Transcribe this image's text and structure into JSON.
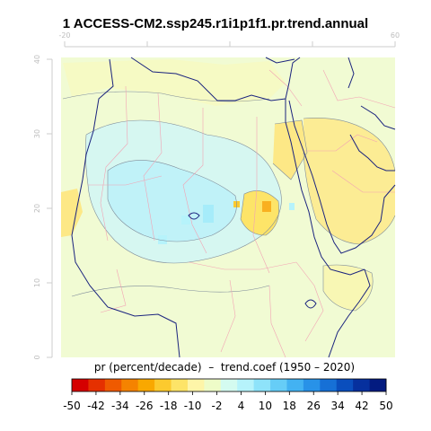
{
  "title": "1 ACCESS-CM2.ssp245.r1i1p1f1.pr.trend.annual",
  "map": {
    "top_axis_labels": [
      "-20",
      "60"
    ],
    "left_axis_labels": [
      "40",
      "30",
      "20",
      "10",
      "0"
    ],
    "lon_range": [
      -20,
      60
    ],
    "lat_range": [
      0,
      40
    ],
    "colors": {
      "coast": "#1a237e",
      "borders": "#f2a3b4",
      "contours": "#7f8c9a",
      "axis": "#cccccc"
    }
  },
  "colorbar": {
    "label": "pr (percent/decade)  –  trend.coef (1950 – 2020)",
    "ticks": [
      "-50",
      "-42",
      "-34",
      "-26",
      "-18",
      "-10",
      "-2",
      "4",
      "10",
      "18",
      "26",
      "34",
      "42",
      "50"
    ],
    "range": [
      -50,
      50
    ],
    "palette": [
      "#d50000",
      "#e53000",
      "#ef5a00",
      "#f58300",
      "#f9a800",
      "#fcca2e",
      "#fde468",
      "#fef5a8",
      "#eefcc8",
      "#d4fbf0",
      "#b6f3fb",
      "#8ee3fa",
      "#66cdf7",
      "#43b2f2",
      "#2892e8",
      "#1670d6",
      "#0a4ebd",
      "#06309e",
      "#031b80"
    ]
  }
}
